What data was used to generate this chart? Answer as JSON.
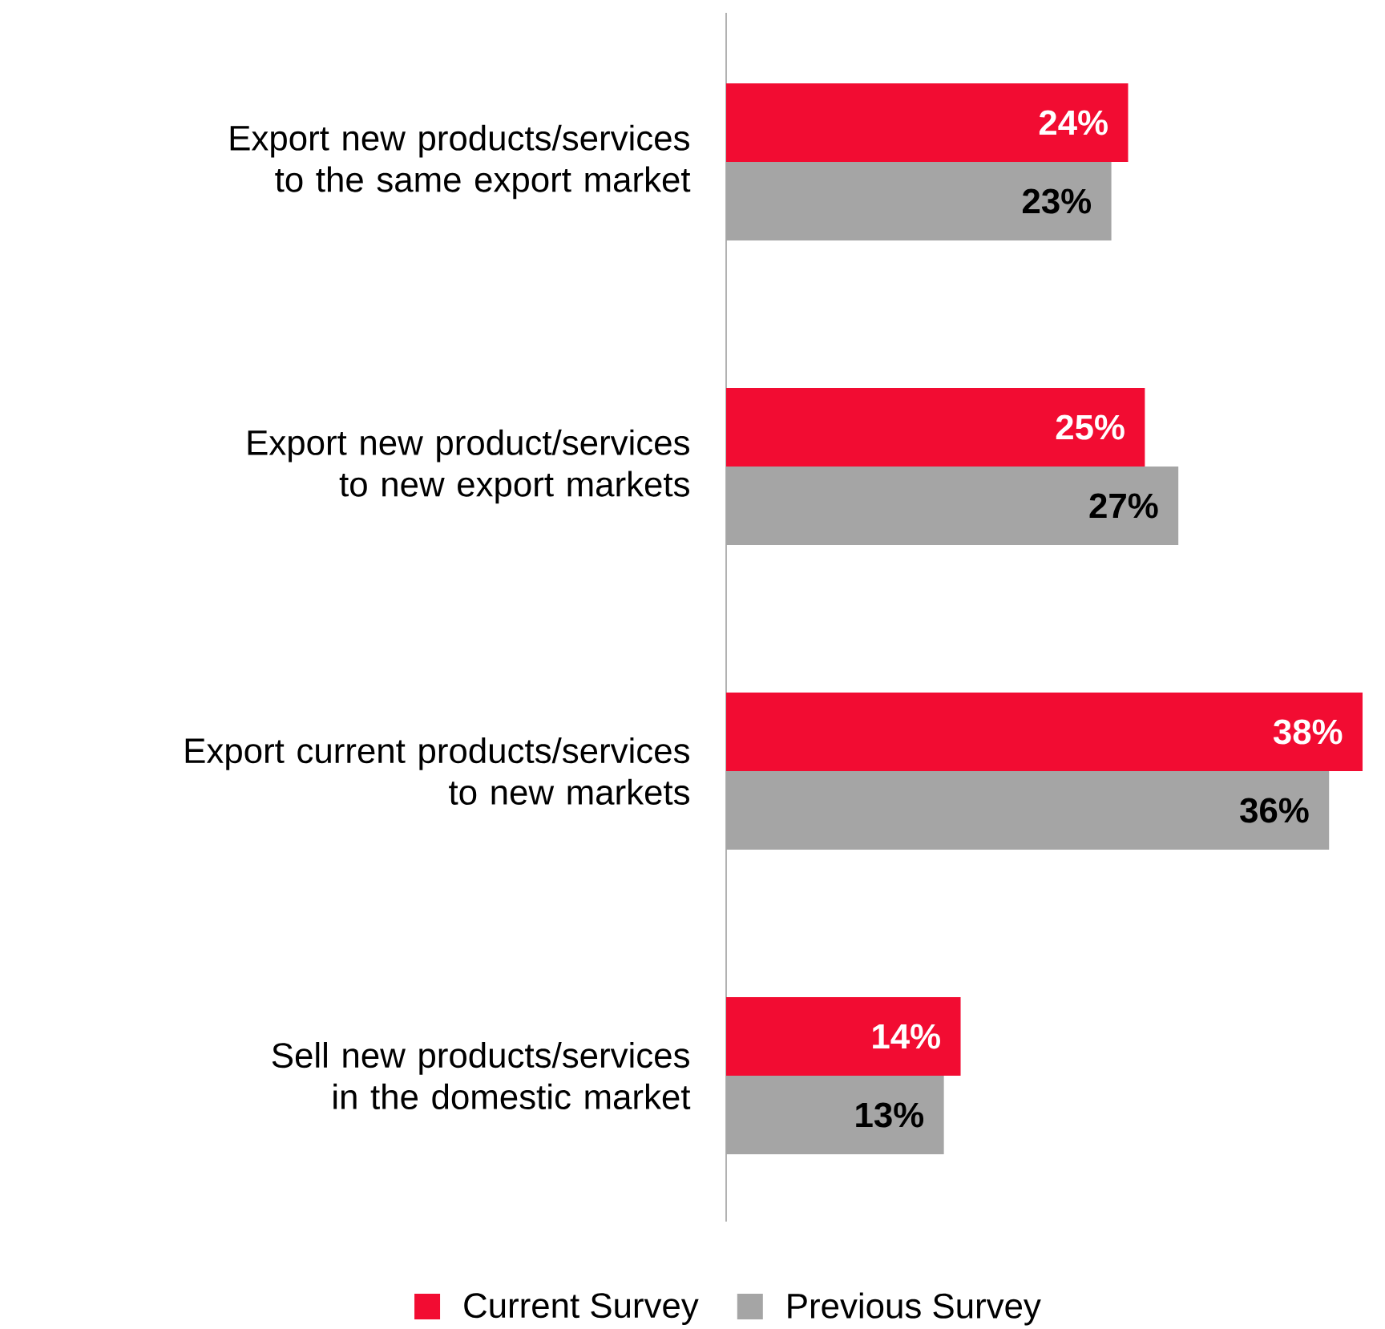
{
  "chart_data": {
    "type": "bar",
    "orientation": "horizontal",
    "categories": [
      "Export new products/services to the same export market",
      "Export new product/services to new export markets",
      "Export current products/services to new markets",
      "Sell new products/services in the domestic market"
    ],
    "series": [
      {
        "name": "Current Survey",
        "color": "#f20c32",
        "values": [
          24,
          25,
          38,
          14
        ],
        "value_labels": [
          "24%",
          "25%",
          "38%",
          "14%"
        ]
      },
      {
        "name": "Previous Survey",
        "color": "#a5a5a5",
        "values": [
          23,
          27,
          36,
          13
        ],
        "value_labels": [
          "23%",
          "27%",
          "36%",
          "13%"
        ]
      }
    ],
    "legend": "bottom"
  }
}
